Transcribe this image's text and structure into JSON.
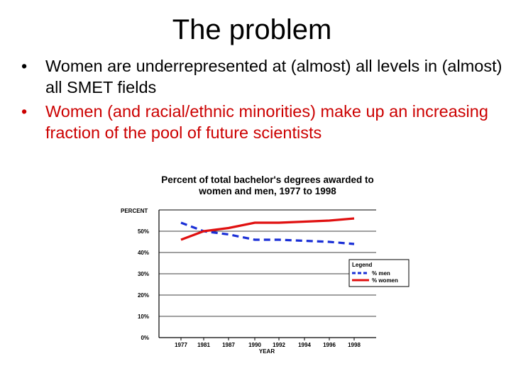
{
  "slide": {
    "title": "The problem",
    "bullets": [
      {
        "text": "Women are underrepresented at (almost) all levels in (almost) all SMET fields",
        "color": "#000000"
      },
      {
        "text": "Women (and racial/ethnic minorities) make up an increasing fraction of the pool of future scientists",
        "color": "#cc0000"
      }
    ]
  },
  "chart_data": {
    "type": "line",
    "title_line1": "Percent of total bachelor's degrees awarded to",
    "title_line2": "women and men, 1977 to 1998",
    "ylabel": "PERCENT",
    "xlabel": "YEAR",
    "ylim": [
      0,
      60
    ],
    "yticks": [
      {
        "value": 0,
        "label": "0%"
      },
      {
        "value": 10,
        "label": "10%"
      },
      {
        "value": 20,
        "label": "20%"
      },
      {
        "value": 30,
        "label": "30%"
      },
      {
        "value": 40,
        "label": "40%"
      },
      {
        "value": 50,
        "label": "50%"
      }
    ],
    "categories": [
      "1977",
      "1981",
      "1987",
      "1990",
      "1992",
      "1994",
      "1996",
      "1998"
    ],
    "series": [
      {
        "name": "% men",
        "color": "#1a2fd6",
        "dashed": true,
        "values": [
          54,
          50,
          48.5,
          46,
          46,
          45.5,
          45,
          44
        ]
      },
      {
        "name": "% women",
        "color": "#e01010",
        "dashed": false,
        "values": [
          46,
          50,
          51.5,
          54,
          54,
          54.5,
          55,
          56
        ]
      }
    ],
    "legend": {
      "title": "Legend",
      "placement": "right"
    },
    "grid": true
  }
}
